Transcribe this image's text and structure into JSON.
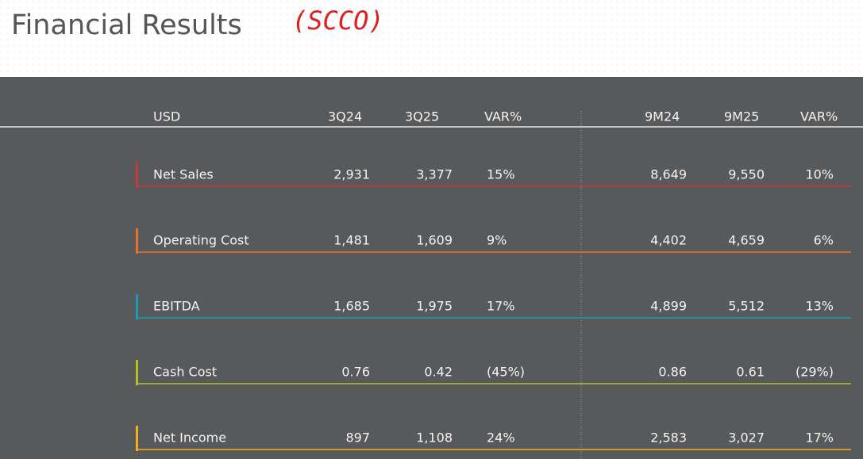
{
  "header": {
    "title": "Financial Results",
    "annotation": "(SCCO)"
  },
  "table": {
    "columns": [
      "USD",
      "3Q24",
      "3Q25",
      "VAR%",
      "9M24",
      "9M25",
      "VAR%"
    ],
    "rows": [
      [
        "Net Sales",
        "2,931",
        "3,377",
        "15%",
        "8,649",
        "9,550",
        "10%"
      ],
      [
        "Operating Cost",
        "1,481",
        "1,609",
        "9%",
        "4,402",
        "4,659",
        "6%"
      ],
      [
        "EBITDA",
        "1,685",
        "1,975",
        "17%",
        "4,899",
        "5,512",
        "13%"
      ],
      [
        "Cash Cost",
        "0.76",
        "0.42",
        "(45%)",
        "0.86",
        "0.61",
        "(29%)"
      ],
      [
        "Net Income",
        "897",
        "1,108",
        "24%",
        "2,583",
        "3,027",
        "17%"
      ]
    ]
  }
}
